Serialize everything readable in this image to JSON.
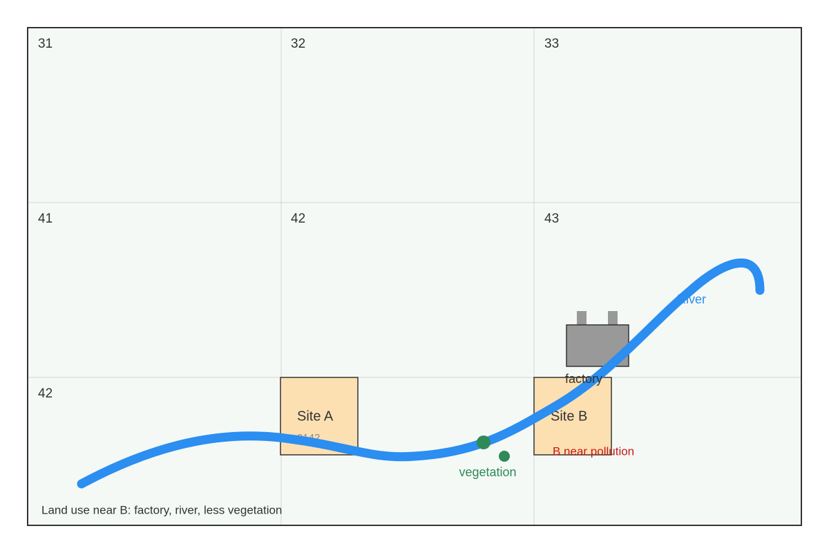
{
  "cells": [
    "31",
    "32",
    "33",
    "41",
    "42",
    "43",
    "42"
  ],
  "sites": [
    {
      "label": "Site A",
      "code": "0142"
    },
    {
      "label": "Site B"
    }
  ],
  "factory": {
    "label": "factory"
  },
  "river": {
    "label": "River"
  },
  "vegetation": {
    "label": "vegetation"
  },
  "warning": "B near pollution",
  "caption": "Land use near B: factory, river, less vegetation"
}
